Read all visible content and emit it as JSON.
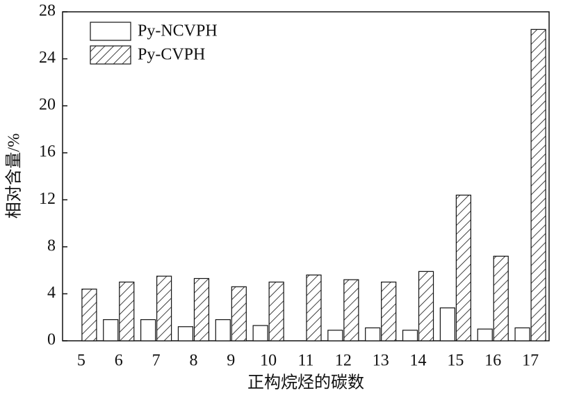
{
  "chart_data": {
    "type": "bar",
    "x_label": "正构烷烃的碳数",
    "y_label": "相对含量/%",
    "categories": [
      "5",
      "6",
      "7",
      "8",
      "9",
      "10",
      "11",
      "12",
      "13",
      "14",
      "15",
      "16",
      "17"
    ],
    "series": [
      {
        "name": "Py-NCVPH",
        "color": "#ffffff",
        "hatch": false,
        "values": [
          0,
          1.8,
          1.8,
          1.2,
          1.8,
          1.3,
          0,
          0.9,
          1.1,
          0.9,
          2.8,
          1.0,
          1.1
        ]
      },
      {
        "name": "Py-CVPH",
        "color": "#ffffff",
        "hatch": true,
        "values": [
          4.4,
          5.0,
          5.5,
          5.3,
          4.6,
          5.0,
          5.6,
          5.2,
          5.0,
          5.9,
          12.4,
          7.2,
          26.5
        ]
      }
    ],
    "ylim": [
      0,
      28
    ],
    "yticks": [
      0,
      4,
      8,
      12,
      16,
      20,
      24,
      28
    ],
    "legend": "upper left"
  }
}
